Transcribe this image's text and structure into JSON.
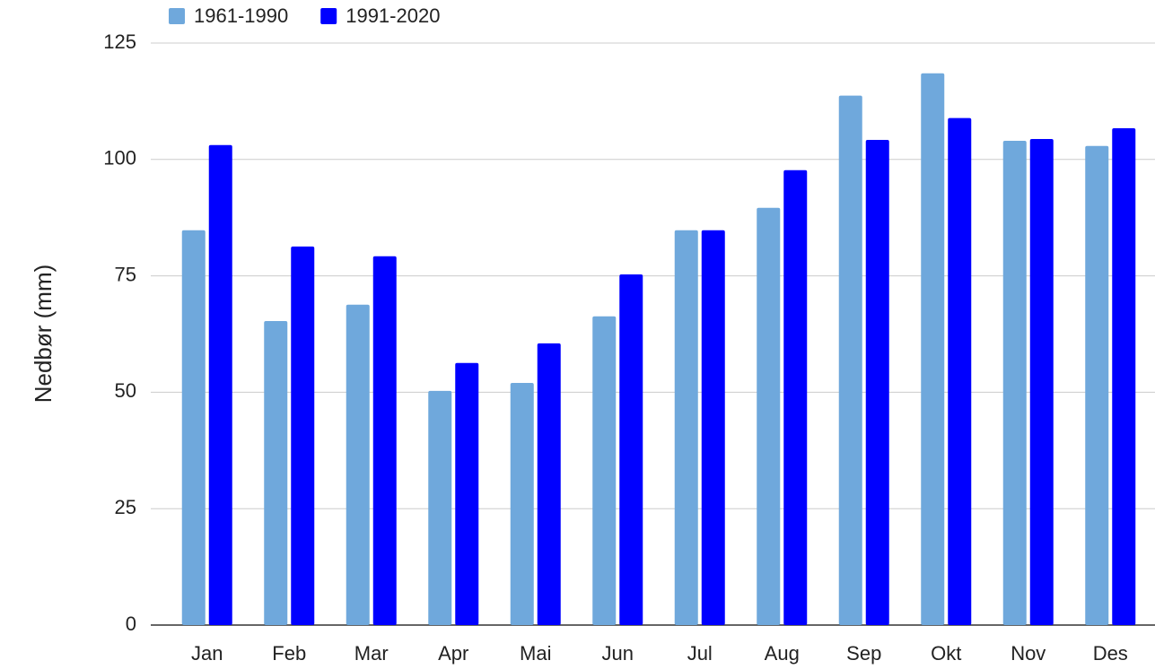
{
  "chart_data": {
    "type": "bar",
    "y_label": "Nedbør (mm)",
    "categories": [
      "Jan",
      "Feb",
      "Mar",
      "Apr",
      "Mai",
      "Jun",
      "Jul",
      "Aug",
      "Sep",
      "Okt",
      "Nov",
      "Des"
    ],
    "series": [
      {
        "name": "1961-1990",
        "color": "#6fa8dc",
        "values": [
          84.8,
          65.3,
          68.8,
          50.3,
          52.0,
          66.3,
          84.8,
          89.6,
          113.7,
          118.5,
          104.0,
          102.9
        ]
      },
      {
        "name": "1991-2020",
        "color": "#0000ff",
        "values": [
          103.1,
          81.3,
          79.2,
          56.3,
          60.5,
          75.3,
          84.8,
          97.7,
          104.2,
          108.9,
          104.4,
          106.7
        ]
      }
    ],
    "ylim": [
      0,
      125
    ],
    "yticks": [
      0,
      25,
      50,
      75,
      100,
      125
    ],
    "grid": true,
    "legend": "top-left"
  }
}
